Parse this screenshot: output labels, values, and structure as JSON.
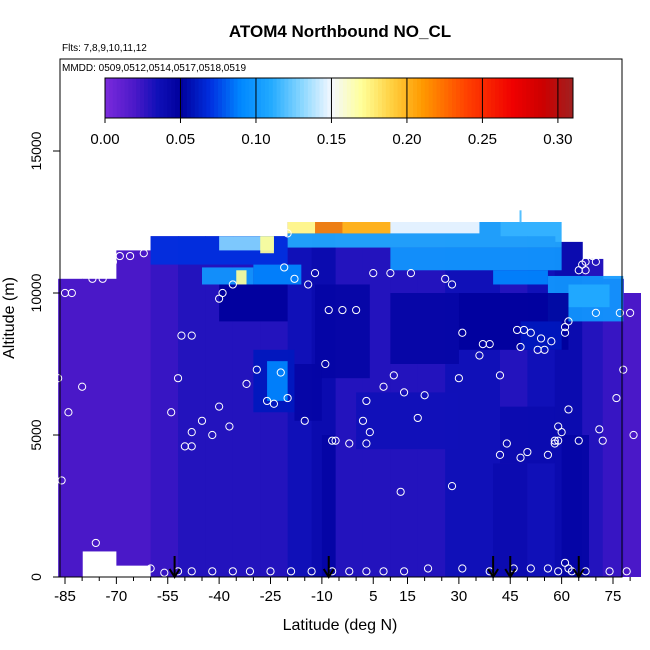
{
  "chart_data": {
    "type": "heatmap",
    "title": "ATOM4 Northbound NO_CL",
    "notes": [
      "Flts: 7,8,9,10,11,12",
      "MMDD: 0509,0512,0514,0517,0518,0519"
    ],
    "xlabel": "Latitude (deg N)",
    "ylabel": "Altitude (m)",
    "xlim": [
      -87,
      83
    ],
    "ylim": [
      0,
      18000
    ],
    "x_ticks": [
      -85,
      -70,
      -55,
      -40,
      -25,
      -10,
      5,
      15,
      30,
      45,
      60,
      75
    ],
    "y_ticks": [
      0,
      5000,
      10000,
      15000
    ],
    "colorbar": {
      "min": 0,
      "max": 0.31,
      "ticks": [
        "0.00",
        "0.05",
        "0.10",
        "0.15",
        "0.20",
        "0.25",
        "0.30"
      ],
      "tick_values": [
        0,
        0.05,
        0.1,
        0.15,
        0.2,
        0.25,
        0.3
      ],
      "stops": [
        {
          "v": 0.0,
          "color": "#7b2bdc"
        },
        {
          "v": 0.02,
          "color": "#4a18c8"
        },
        {
          "v": 0.035,
          "color": "#1010b8"
        },
        {
          "v": 0.05,
          "color": "#00009c"
        },
        {
          "v": 0.07,
          "color": "#0030e0"
        },
        {
          "v": 0.09,
          "color": "#0088ff"
        },
        {
          "v": 0.11,
          "color": "#22aaff"
        },
        {
          "v": 0.13,
          "color": "#88d6ff"
        },
        {
          "v": 0.15,
          "color": "#f4f8ff"
        },
        {
          "v": 0.17,
          "color": "#ffff99"
        },
        {
          "v": 0.19,
          "color": "#ffd040"
        },
        {
          "v": 0.21,
          "color": "#ff9a00"
        },
        {
          "v": 0.24,
          "color": "#ff4000"
        },
        {
          "v": 0.27,
          "color": "#f00000"
        },
        {
          "v": 0.29,
          "color": "#cc0000"
        },
        {
          "v": 0.31,
          "color": "#a02020"
        }
      ]
    },
    "columns": [
      {
        "x0": -87,
        "x1": -80,
        "top": 10500,
        "bottom": 0,
        "base": 0.02
      },
      {
        "x0": -80,
        "x1": -70,
        "top": 10500,
        "bottom": 900,
        "base": 0.02
      },
      {
        "x0": -70,
        "x1": -60,
        "top": 11500,
        "bottom": 400,
        "base": 0.02
      },
      {
        "x0": -60,
        "x1": -52,
        "top": 12000,
        "bottom": 0,
        "base": 0.025
      },
      {
        "x0": -52,
        "x1": -44,
        "top": 12000,
        "bottom": 0,
        "base": 0.03
      },
      {
        "x0": -44,
        "x1": -36,
        "top": 12000,
        "bottom": 0,
        "base": 0.03
      },
      {
        "x0": -36,
        "x1": -28,
        "top": 12000,
        "bottom": 0,
        "base": 0.03
      },
      {
        "x0": -28,
        "x1": -20,
        "top": 12000,
        "bottom": 0,
        "base": 0.03
      },
      {
        "x0": -20,
        "x1": -13,
        "top": 12500,
        "bottom": 0,
        "base": 0.035
      },
      {
        "x0": -13,
        "x1": -6,
        "top": 12500,
        "bottom": 0,
        "base": 0.04
      },
      {
        "x0": -6,
        "x1": 2,
        "top": 12500,
        "bottom": 0,
        "base": 0.03
      },
      {
        "x0": 2,
        "x1": 10,
        "top": 12500,
        "bottom": 0,
        "base": 0.03
      },
      {
        "x0": 10,
        "x1": 18,
        "top": 12500,
        "bottom": 0,
        "base": 0.03
      },
      {
        "x0": 18,
        "x1": 26,
        "top": 12500,
        "bottom": 0,
        "base": 0.03
      },
      {
        "x0": 26,
        "x1": 34,
        "top": 12500,
        "bottom": 0,
        "base": 0.035
      },
      {
        "x0": 34,
        "x1": 42,
        "top": 12500,
        "bottom": 0,
        "base": 0.035
      },
      {
        "x0": 42,
        "x1": 50,
        "top": 12000,
        "bottom": 0,
        "base": 0.03
      },
      {
        "x0": 50,
        "x1": 58,
        "top": 12000,
        "bottom": 0,
        "base": 0.035
      },
      {
        "x0": 58,
        "x1": 66,
        "top": 11800,
        "bottom": 0,
        "base": 0.04
      },
      {
        "x0": 66,
        "x1": 72,
        "top": 11200,
        "bottom": 0,
        "base": 0.03
      },
      {
        "x0": 72,
        "x1": 78,
        "top": 10500,
        "bottom": 0,
        "base": 0.025
      },
      {
        "x0": 78,
        "x1": 83,
        "top": 10000,
        "bottom": 0,
        "base": 0.02
      }
    ],
    "features": [
      {
        "x0": -60,
        "x1": -20,
        "y0": 11000,
        "y1": 12000,
        "value": 0.07
      },
      {
        "x0": -40,
        "x1": -24,
        "y0": 11500,
        "y1": 12000,
        "value": 0.13
      },
      {
        "x0": -28,
        "x1": -24,
        "y0": 11400,
        "y1": 12000,
        "value": 0.17
      },
      {
        "x0": -45,
        "x1": -30,
        "y0": 10300,
        "y1": 10900,
        "value": 0.1
      },
      {
        "x0": -35,
        "x1": -32,
        "y0": 10300,
        "y1": 10800,
        "value": 0.17
      },
      {
        "x0": -30,
        "x1": -16,
        "y0": 10300,
        "y1": 11000,
        "value": 0.09
      },
      {
        "x0": -20,
        "x1": 60,
        "y0": 11600,
        "y1": 12500,
        "value": 0.11
      },
      {
        "x0": -20,
        "x1": 10,
        "y0": 12100,
        "y1": 12500,
        "value": 0.22
      },
      {
        "x0": -20,
        "x1": -12,
        "y0": 12100,
        "y1": 12500,
        "value": 0.17
      },
      {
        "x0": -4,
        "x1": 10,
        "y0": 12100,
        "y1": 12500,
        "value": 0.2
      },
      {
        "x0": 10,
        "x1": 36,
        "y0": 12100,
        "y1": 12500,
        "value": 0.15
      },
      {
        "x0": 10,
        "x1": 60,
        "y0": 10800,
        "y1": 11600,
        "value": 0.1
      },
      {
        "x0": 40,
        "x1": 56,
        "y0": 10300,
        "y1": 10800,
        "value": 0.09
      },
      {
        "x0": 56,
        "x1": 78,
        "y0": 9000,
        "y1": 10600,
        "value": 0.1
      },
      {
        "x0": 62,
        "x1": 74,
        "y0": 9500,
        "y1": 10300,
        "value": 0.11
      },
      {
        "x0": -40,
        "x1": -20,
        "y0": 9000,
        "y1": 10300,
        "value": 0.05
      },
      {
        "x0": -12,
        "x1": 4,
        "y0": 7000,
        "y1": 10300,
        "value": 0.045
      },
      {
        "x0": 10,
        "x1": 30,
        "y0": 7500,
        "y1": 10000,
        "value": 0.045
      },
      {
        "x0": 30,
        "x1": 62,
        "y0": 8000,
        "y1": 10000,
        "value": 0.05
      },
      {
        "x0": 48,
        "x1": 60,
        "y0": 8000,
        "y1": 9000,
        "value": 0.06
      },
      {
        "x0": -30,
        "x1": -18,
        "y0": 5800,
        "y1": 8000,
        "value": 0.06
      },
      {
        "x0": -26,
        "x1": -20,
        "y0": 6200,
        "y1": 7600,
        "value": 0.09
      },
      {
        "x0": -18,
        "x1": -10,
        "y0": 5500,
        "y1": 7500,
        "value": 0.045
      },
      {
        "x0": 0,
        "x1": 30,
        "y0": 4500,
        "y1": 6500,
        "value": 0.035
      },
      {
        "x0": 42,
        "x1": 58,
        "y0": 4000,
        "y1": 6000,
        "value": 0.04
      },
      {
        "x0": -10,
        "x1": -6,
        "y0": 0,
        "y1": 5000,
        "value": 0.045
      },
      {
        "x0": 40,
        "x1": 50,
        "y0": 0,
        "y1": 4000,
        "value": 0.04
      },
      {
        "x0": 60,
        "x1": 68,
        "y0": 0,
        "y1": 5000,
        "value": 0.045
      }
    ],
    "highlight": {
      "lat": 48,
      "alt": 12700,
      "value": 0.12
    },
    "points": [
      [
        -85,
        10000
      ],
      [
        -83,
        10000
      ],
      [
        -77,
        10500
      ],
      [
        -74,
        10500
      ],
      [
        -71,
        11100
      ],
      [
        -69,
        11300
      ],
      [
        -66,
        11300
      ],
      [
        -62,
        11400
      ],
      [
        -87,
        7000
      ],
      [
        -84,
        5800
      ],
      [
        -80,
        6700
      ],
      [
        -76,
        1200
      ],
      [
        -54,
        5800
      ],
      [
        -52,
        7000
      ],
      [
        -51,
        8500
      ],
      [
        -48,
        8500
      ],
      [
        -50,
        4600
      ],
      [
        -48,
        4600
      ],
      [
        -48,
        5100
      ],
      [
        -45,
        5500
      ],
      [
        -42,
        5000
      ],
      [
        -40,
        6000
      ],
      [
        -37,
        5300
      ],
      [
        -40,
        9800
      ],
      [
        -39,
        10000
      ],
      [
        -36,
        10300
      ],
      [
        -32,
        6800
      ],
      [
        -29,
        7300
      ],
      [
        -26,
        6200
      ],
      [
        -24,
        6100
      ],
      [
        -22,
        7200
      ],
      [
        -20,
        6300
      ],
      [
        -20,
        12100
      ],
      [
        -21,
        10900
      ],
      [
        -18,
        10500
      ],
      [
        -15,
        5500
      ],
      [
        -14,
        10300
      ],
      [
        -12,
        10700
      ],
      [
        -9,
        7500
      ],
      [
        -7,
        4800
      ],
      [
        -6,
        4800
      ],
      [
        -8,
        9400
      ],
      [
        -4,
        9400
      ],
      [
        -2,
        4700
      ],
      [
        0,
        9400
      ],
      [
        2,
        5500
      ],
      [
        3,
        6200
      ],
      [
        4,
        5100
      ],
      [
        3,
        4700
      ],
      [
        5,
        10700
      ],
      [
        8,
        6700
      ],
      [
        10,
        10700
      ],
      [
        11,
        7100
      ],
      [
        13,
        3000
      ],
      [
        14,
        6500
      ],
      [
        16,
        10700
      ],
      [
        18,
        5600
      ],
      [
        20,
        6400
      ],
      [
        26,
        10500
      ],
      [
        28,
        10300
      ],
      [
        28,
        3200
      ],
      [
        30,
        7000
      ],
      [
        31,
        8600
      ],
      [
        36,
        7800
      ],
      [
        37,
        8200
      ],
      [
        39,
        8200
      ],
      [
        42,
        7100
      ],
      [
        42,
        4300
      ],
      [
        44,
        4700
      ],
      [
        47,
        8700
      ],
      [
        48,
        8100
      ],
      [
        48,
        4200
      ],
      [
        49,
        8700
      ],
      [
        50,
        4400
      ],
      [
        51,
        8600
      ],
      [
        53,
        8000
      ],
      [
        54,
        8400
      ],
      [
        55,
        8000
      ],
      [
        56,
        4300
      ],
      [
        57,
        8300
      ],
      [
        58,
        4800
      ],
      [
        58,
        4700
      ],
      [
        59,
        4800
      ],
      [
        59,
        5300
      ],
      [
        60,
        5100
      ],
      [
        61,
        8800
      ],
      [
        61,
        8600
      ],
      [
        62,
        9000
      ],
      [
        62,
        5900
      ],
      [
        65,
        4800
      ],
      [
        65,
        10800
      ],
      [
        66,
        11000
      ],
      [
        67,
        11100
      ],
      [
        67,
        10800
      ],
      [
        69,
        11300
      ],
      [
        70,
        11100
      ],
      [
        70,
        9300
      ],
      [
        71,
        5200
      ],
      [
        72,
        4800
      ],
      [
        76,
        6300
      ],
      [
        77,
        9300
      ],
      [
        78,
        7300
      ],
      [
        80,
        9300
      ],
      [
        81,
        5000
      ],
      [
        -86,
        3400
      ],
      [
        -60,
        300
      ],
      [
        -56,
        150
      ],
      [
        -52,
        200
      ],
      [
        -48,
        200
      ],
      [
        -42,
        200
      ],
      [
        -36,
        200
      ],
      [
        -31,
        200
      ],
      [
        -25,
        200
      ],
      [
        -19,
        200
      ],
      [
        -13,
        200
      ],
      [
        -7,
        200
      ],
      [
        -2,
        200
      ],
      [
        3,
        200
      ],
      [
        8,
        200
      ],
      [
        14,
        200
      ],
      [
        21,
        300
      ],
      [
        31,
        300
      ],
      [
        39,
        200
      ],
      [
        46,
        300
      ],
      [
        51,
        300
      ],
      [
        56,
        300
      ],
      [
        59,
        200
      ],
      [
        61,
        500
      ],
      [
        62,
        300
      ],
      [
        63,
        200
      ],
      [
        67,
        200
      ],
      [
        74,
        200
      ],
      [
        79,
        200
      ]
    ],
    "arrows": [
      -53,
      -8,
      40,
      45,
      65
    ]
  }
}
